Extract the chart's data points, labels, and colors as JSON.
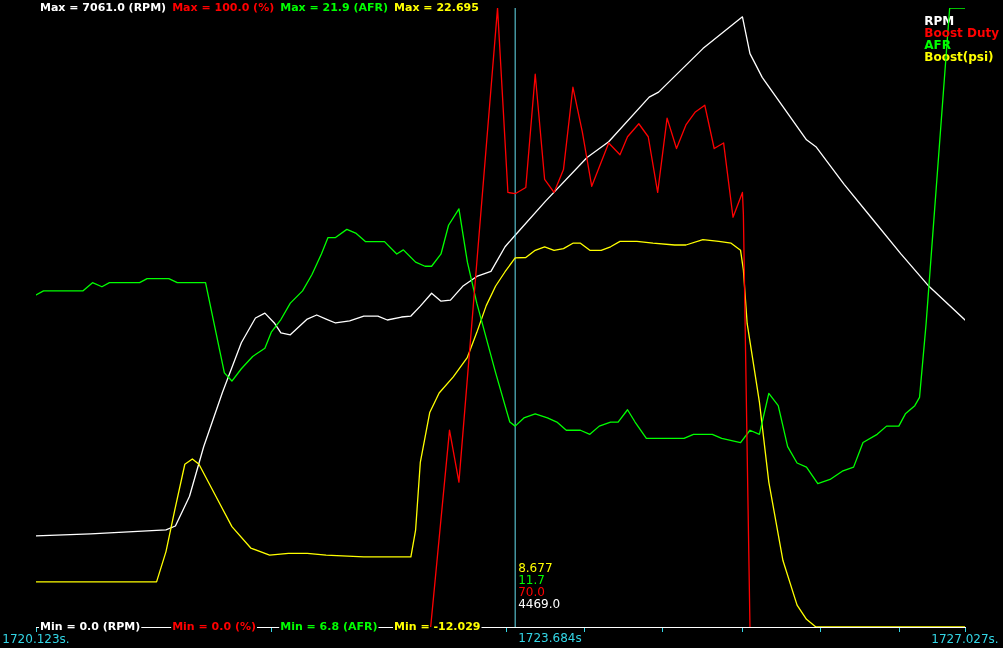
{
  "chart_data": [
    {
      "type": "line",
      "grid": false,
      "marker": "none",
      "line_style": "solid",
      "xlim": [
        1720.123,
        1727.027
      ],
      "xticks": [
        {
          "value": 1720.123,
          "label": "1720.123s."
        },
        {
          "value": 1720.7,
          "label": null
        },
        {
          "value": 1721.29,
          "label": null
        },
        {
          "value": 1721.87,
          "label": null
        },
        {
          "value": 1722.45,
          "label": null
        },
        {
          "value": 1723.03,
          "label": null
        },
        {
          "value": 1723.62,
          "label": null
        },
        {
          "value": 1724.2,
          "label": null
        },
        {
          "value": 1724.78,
          "label": null
        },
        {
          "value": 1725.37,
          "label": null
        },
        {
          "value": 1725.95,
          "label": null
        },
        {
          "value": 1726.54,
          "label": null
        },
        {
          "value": 1727.027,
          "label": "1727.027s."
        }
      ],
      "ylim": [
        0,
        7061
      ],
      "yticks": [
        {
          "value": 0,
          "label": "Min = 0.0 (RPM)"
        },
        {
          "value": 7061,
          "label": "Max = 7061.0 (RPM)"
        }
      ],
      "ref_lines": [
        {
          "axis": "x",
          "value": 1723.684,
          "label": "1723.684s",
          "color": "#66e0f0"
        }
      ],
      "annotations": [
        "4469.0"
      ],
      "series": [
        {
          "name": "RPM",
          "color": "#ffffff",
          "x": [
            1720.123,
            1720.529,
            1720.809,
            1721.089,
            1721.159,
            1721.264,
            1721.369,
            1721.509,
            1721.649,
            1721.754,
            1721.824,
            1721.894,
            1721.943,
            1722.013,
            1722.139,
            1722.209,
            1722.279,
            1722.349,
            1722.454,
            1722.559,
            1722.664,
            1722.734,
            1722.839,
            1722.909,
            1722.979,
            1723.063,
            1723.133,
            1723.203,
            1723.294,
            1723.399,
            1723.504,
            1723.609,
            1723.684,
            1723.91,
            1724.218,
            1724.379,
            1724.68,
            1724.75,
            1725.079,
            1725.373,
            1725.429,
            1725.52,
            1725.849,
            1725.919,
            1726.129,
            1726.339,
            1726.549,
            1726.759,
            1727.027
          ],
          "values": [
            1039,
            1062,
            1085,
            1107,
            1152,
            1491,
            2056,
            2678,
            3242,
            3525,
            3581,
            3468,
            3355,
            3333,
            3513,
            3559,
            3513,
            3468,
            3491,
            3547,
            3547,
            3502,
            3536,
            3547,
            3660,
            3807,
            3717,
            3728,
            3886,
            3999,
            4056,
            4338,
            4469,
            4858,
            5355,
            5536,
            6044,
            6101,
            6598,
            6960,
            6541,
            6270,
            5558,
            5479,
            5050,
            4654,
            4259,
            3886,
            3502
          ]
        }
      ]
    },
    {
      "type": "line",
      "grid": false,
      "marker": "none",
      "line_style": "solid",
      "tick_labels": "y",
      "xlim": [
        1720.123,
        1727.027
      ],
      "ylim": [
        0,
        100
      ],
      "yticks": [
        {
          "value": 0,
          "label": "Min = 0.0 (%)"
        },
        {
          "value": 100,
          "label": "Max = 100.0 (%)"
        }
      ],
      "annotations": [
        "70.0"
      ],
      "series": [
        {
          "name": "Boost Duty",
          "color": "#ff0000",
          "x": [
            1723.056,
            1723.196,
            1723.266,
            1723.553,
            1723.63,
            1723.684,
            1723.763,
            1723.833,
            1723.903,
            1723.973,
            1724.043,
            1724.113,
            1724.183,
            1724.253,
            1724.379,
            1724.463,
            1724.519,
            1724.603,
            1724.673,
            1724.743,
            1724.813,
            1724.883,
            1724.953,
            1725.023,
            1725.093,
            1725.163,
            1725.233,
            1725.303,
            1725.373,
            1725.38,
            1725.429
          ],
          "values": [
            0,
            31.8,
            23.4,
            100,
            70.2,
            70.0,
            71.0,
            89.3,
            72.3,
            70.2,
            73.9,
            87.2,
            80.0,
            71.2,
            78.2,
            76.3,
            79.2,
            81.3,
            79.2,
            70.2,
            82.2,
            77.3,
            81.1,
            83.2,
            84.3,
            77.3,
            78.2,
            66.2,
            70.2,
            66.7,
            0
          ]
        }
      ]
    },
    {
      "type": "line",
      "grid": false,
      "marker": "none",
      "line_style": "solid",
      "tick_labels": "y",
      "xlim": [
        1720.123,
        1727.027
      ],
      "ylim": [
        6.8,
        21.9
      ],
      "yticks": [
        {
          "value": 6.8,
          "label": "Min = 6.8 (AFR)"
        },
        {
          "value": 21.9,
          "label": "Max = 21.9 (AFR)"
        }
      ],
      "annotations": [
        "11.7"
      ],
      "series": [
        {
          "name": "AFR",
          "color": "#00ff00",
          "x": [
            1720.123,
            1720.179,
            1720.473,
            1720.543,
            1720.613,
            1720.669,
            1720.893,
            1720.949,
            1721.11,
            1721.173,
            1721.383,
            1721.523,
            1721.579,
            1721.649,
            1721.733,
            1721.824,
            1721.873,
            1721.943,
            1722.013,
            1722.104,
            1722.174,
            1722.244,
            1722.293,
            1722.349,
            1722.433,
            1722.503,
            1722.573,
            1722.713,
            1722.804,
            1722.853,
            1722.944,
            1723.014,
            1723.063,
            1723.133,
            1723.189,
            1723.266,
            1723.329,
            1723.399,
            1723.539,
            1723.644,
            1723.684,
            1723.749,
            1723.833,
            1723.924,
            1723.994,
            1724.064,
            1724.169,
            1724.239,
            1724.309,
            1724.393,
            1724.449,
            1724.519,
            1724.575,
            1724.659,
            1724.799,
            1724.939,
            1725.009,
            1725.149,
            1725.219,
            1725.359,
            1725.429,
            1725.499,
            1725.569,
            1725.639,
            1725.709,
            1725.779,
            1725.849,
            1725.933,
            1726.024,
            1726.115,
            1726.199,
            1726.269,
            1726.374,
            1726.444,
            1726.535,
            1726.584,
            1726.654,
            1726.689,
            1726.738,
            1726.913,
            1727.027
          ],
          "values": [
            14.9,
            15.0,
            15.0,
            15.2,
            15.1,
            15.2,
            15.2,
            15.3,
            15.3,
            15.2,
            15.2,
            13.0,
            12.8,
            13.1,
            13.4,
            13.6,
            14.0,
            14.3,
            14.7,
            15.0,
            15.4,
            15.9,
            16.3,
            16.3,
            16.5,
            16.4,
            16.2,
            16.2,
            15.9,
            16.0,
            15.7,
            15.6,
            15.6,
            15.9,
            16.6,
            17.0,
            15.7,
            14.7,
            13.0,
            11.8,
            11.7,
            11.9,
            12.0,
            11.9,
            11.8,
            11.6,
            11.6,
            11.5,
            11.7,
            11.8,
            11.8,
            12.1,
            11.8,
            11.4,
            11.4,
            11.4,
            11.5,
            11.5,
            11.4,
            11.3,
            11.6,
            11.5,
            12.5,
            12.2,
            11.2,
            10.8,
            10.7,
            10.3,
            10.4,
            10.6,
            10.7,
            11.3,
            11.5,
            11.7,
            11.7,
            12.0,
            12.2,
            12.4,
            14.2,
            21.9,
            21.9
          ]
        }
      ]
    },
    {
      "type": "line",
      "grid": false,
      "marker": "none",
      "line_style": "solid",
      "tick_labels": "y",
      "xlim": [
        1720.123,
        1727.027
      ],
      "ylim": [
        -12.029,
        22.695
      ],
      "yticks": [
        {
          "value": -12.029,
          "label": "Min = -12.029"
        },
        {
          "value": 22.695,
          "label": "Max = 22.695"
        }
      ],
      "annotations": [
        "8.677"
      ],
      "series": [
        {
          "name": "Boost(psi)",
          "color": "#ffff00",
          "x": [
            1720.123,
            1721.019,
            1721.089,
            1721.159,
            1721.229,
            1721.285,
            1721.334,
            1721.439,
            1721.579,
            1721.719,
            1721.859,
            1721.999,
            1722.139,
            1722.279,
            1722.559,
            1722.909,
            1722.944,
            1722.979,
            1723.049,
            1723.119,
            1723.224,
            1723.329,
            1723.399,
            1723.469,
            1723.539,
            1723.609,
            1723.684,
            1723.763,
            1723.833,
            1723.903,
            1723.973,
            1724.043,
            1724.113,
            1724.169,
            1724.239,
            1724.323,
            1724.393,
            1724.463,
            1724.589,
            1724.708,
            1724.869,
            1724.953,
            1725.079,
            1725.198,
            1725.289,
            1725.359,
            1725.38,
            1725.408,
            1725.499,
            1725.569,
            1725.674,
            1725.779,
            1725.849,
            1725.919,
            1727.027
          ],
          "values": [
            -9.5,
            -9.5,
            -7.8,
            -5.3,
            -2.9,
            -2.6,
            -2.9,
            -4.4,
            -6.4,
            -7.6,
            -8.0,
            -7.9,
            -7.9,
            -8.0,
            -8.1,
            -8.1,
            -6.6,
            -2.8,
            0.0,
            1.1,
            2.0,
            3.1,
            4.5,
            6.0,
            7.1,
            7.9,
            8.677,
            8.7,
            9.1,
            9.3,
            9.1,
            9.2,
            9.5,
            9.5,
            9.1,
            9.1,
            9.3,
            9.6,
            9.6,
            9.5,
            9.4,
            9.4,
            9.7,
            9.6,
            9.5,
            9.1,
            8.0,
            5.0,
            0.6,
            -3.9,
            -8.3,
            -10.8,
            -11.6,
            -12.029,
            -12.029
          ]
        }
      ]
    }
  ]
}
